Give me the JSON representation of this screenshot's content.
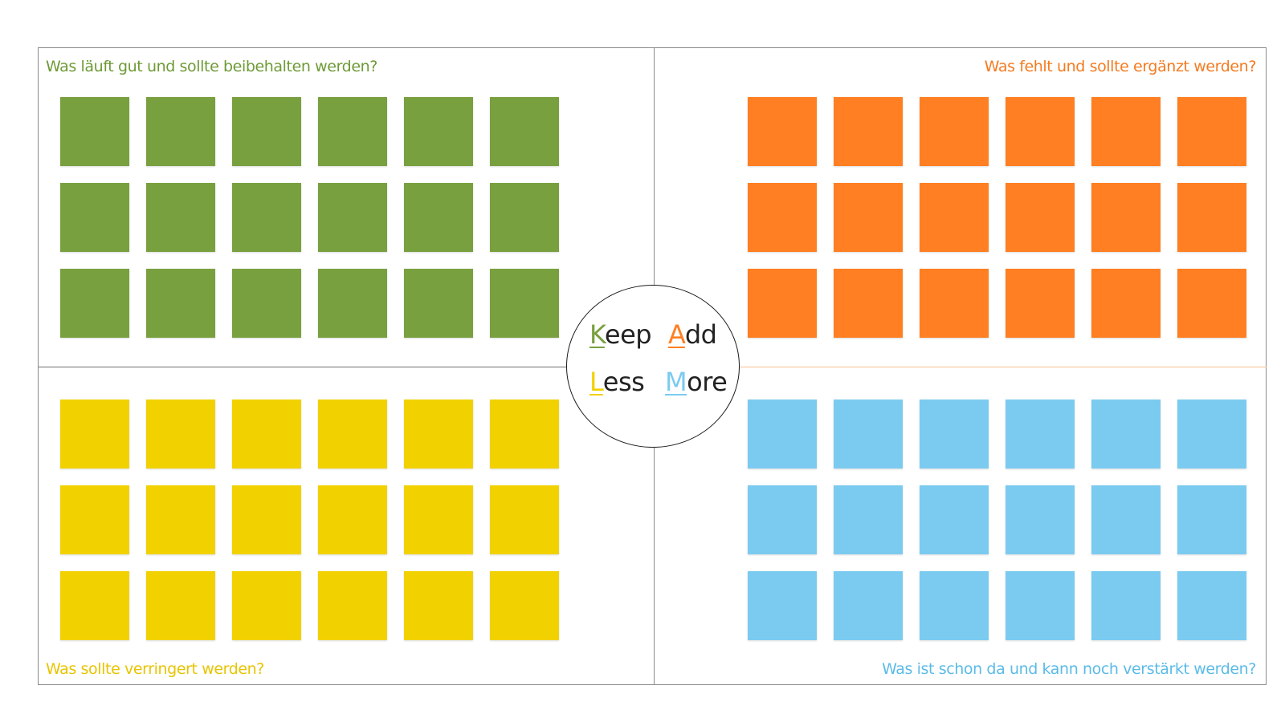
{
  "quadrants": {
    "keep": {
      "question": "Was läuft gut und sollte beibehalten werden?",
      "color": "#79a03f",
      "title_color": "#6e9a36",
      "note_count": 18
    },
    "add": {
      "question": "Was fehlt und sollte ergänzt werden?",
      "color": "#ff7f22",
      "title_color": "#f47b20",
      "note_count": 18
    },
    "less": {
      "question": "Was sollte verringert werden?",
      "color": "#f2d100",
      "title_color": "#e8c400",
      "note_count": 18
    },
    "more": {
      "question": "Was ist schon da und kann noch verstärkt werden?",
      "color": "#7bcbf0",
      "title_color": "#5bbbe8",
      "note_count": 18
    }
  },
  "center": {
    "keep": {
      "initial": "K",
      "rest": "eep"
    },
    "add": {
      "initial": "A",
      "rest": "dd"
    },
    "less": {
      "initial": "L",
      "rest": "ess"
    },
    "more": {
      "initial": "M",
      "rest": "ore"
    }
  }
}
